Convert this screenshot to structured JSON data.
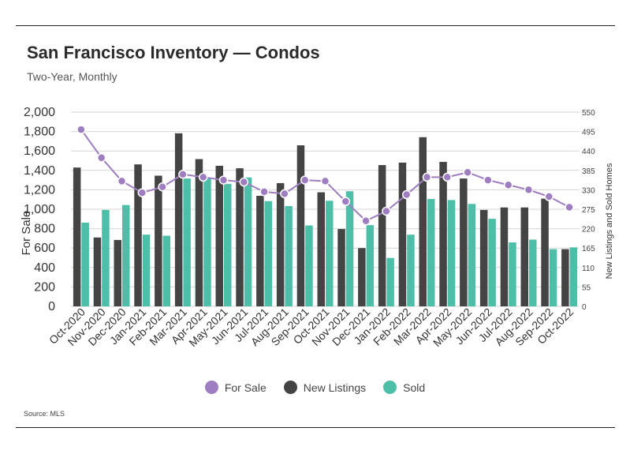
{
  "title": "San Francisco Inventory — Condos",
  "subtitle": "Two-Year, Monthly",
  "source": "Source:  MLS",
  "colors": {
    "for_sale": "#9e7ec0",
    "new_listings": "#444444",
    "sold": "#4dbfa8",
    "grid": "#d6d6d6"
  },
  "chart_data": {
    "type": "bar",
    "categories": [
      "Oct-2020",
      "Nov-2020",
      "Dec-2020",
      "Jan-2021",
      "Feb-2021",
      "Mar-2021",
      "Apr-2021",
      "May-2021",
      "Jun-2021",
      "Jul-2021",
      "Aug-2021",
      "Sep-2021",
      "Oct-2021",
      "Nov-2021",
      "Dec-2021",
      "Jan-2022",
      "Feb-2022",
      "Mar-2022",
      "Apr-2022",
      "May-2022",
      "Jun-2022",
      "Jul-2022",
      "Aug-2022",
      "Sep-2022",
      "Oct-2022"
    ],
    "ylabel": "For Sale",
    "y2label": "New Listings and Sold Homes",
    "ylim": [
      0,
      2000
    ],
    "y2lim": [
      0,
      550
    ],
    "yticks": [
      "0",
      "200",
      "400",
      "600",
      "800",
      "1,000",
      "1,200",
      "1,400",
      "1,600",
      "1,800",
      "2,000"
    ],
    "y2ticks": [
      "0",
      "55",
      "110",
      "165",
      "220",
      "275",
      "330",
      "385",
      "440",
      "495",
      "550"
    ],
    "grid": true,
    "legend_position": "bottom",
    "series": [
      {
        "name": "For Sale",
        "type": "line",
        "axis": "left",
        "values": [
          1820,
          1530,
          1290,
          1170,
          1230,
          1360,
          1330,
          1300,
          1280,
          1180,
          1160,
          1300,
          1290,
          1080,
          880,
          980,
          1150,
          1330,
          1330,
          1380,
          1300,
          1250,
          1200,
          1130,
          1020
        ]
      },
      {
        "name": "New Listings",
        "type": "bar",
        "axis": "right",
        "values": [
          393,
          195,
          188,
          402,
          370,
          490,
          417,
          398,
          391,
          313,
          349,
          456,
          323,
          219,
          165,
          400,
          407,
          479,
          409,
          362,
          273,
          280,
          280,
          305,
          162
        ]
      },
      {
        "name": "Sold",
        "type": "bar",
        "axis": "right",
        "values": [
          237,
          273,
          287,
          203,
          200,
          362,
          362,
          347,
          365,
          298,
          284,
          229,
          299,
          326,
          230,
          137,
          203,
          304,
          301,
          290,
          248,
          181,
          189,
          162,
          167
        ]
      }
    ]
  }
}
